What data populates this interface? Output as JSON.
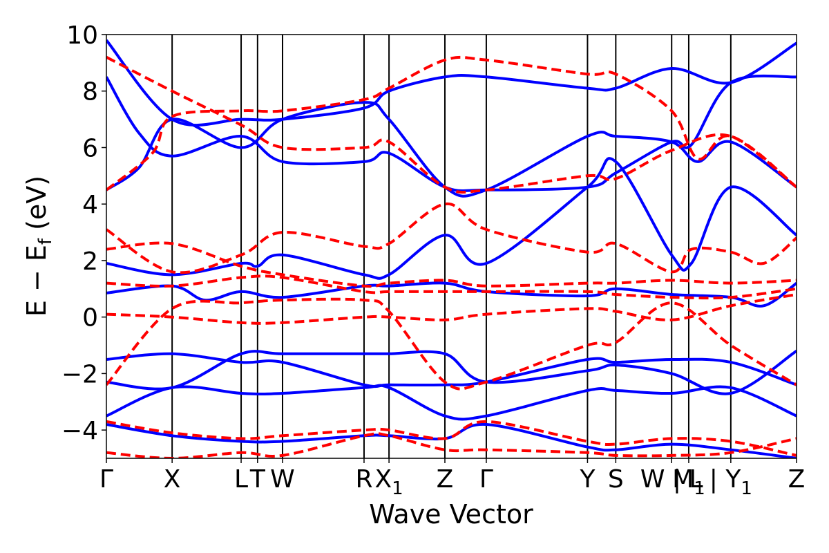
{
  "chart_data": {
    "type": "line",
    "title": "",
    "xlabel": "Wave Vector",
    "ylabel": "E − E",
    "ylabel_sub": "f",
    "ylabel_unit": " (eV)",
    "ylim": [
      -5,
      10
    ],
    "yticks": [
      {
        "value": 10,
        "label": "10"
      },
      {
        "value": 8,
        "label": "8"
      },
      {
        "value": 6,
        "label": "6"
      },
      {
        "value": 4,
        "label": "4"
      },
      {
        "value": 2,
        "label": "2"
      },
      {
        "value": 0,
        "label": "0"
      },
      {
        "value": -2,
        "label": "−2"
      },
      {
        "value": -4,
        "label": "−4"
      }
    ],
    "xlim": [
      0,
      10.5
    ],
    "kpoints": [
      {
        "label": "Γ",
        "x": 0
      },
      {
        "label": "X",
        "x": 1
      },
      {
        "label": "L",
        "x": 2.05
      },
      {
        "label": "T",
        "x": 2.3
      },
      {
        "label": "W",
        "x": 2.68
      },
      {
        "label": "R",
        "x": 3.92
      },
      {
        "label": "X",
        "sub": "1",
        "x": 4.3
      },
      {
        "label": "Z",
        "x": 5.15
      },
      {
        "label": "Γ",
        "x": 5.78
      },
      {
        "label": "Y",
        "x": 7.32
      },
      {
        "label": "S",
        "x": 7.75
      },
      {
        "label": "W | L",
        "x": 8.6
      },
      {
        "label": "M",
        "sub": "1",
        "x": 8.86
      },
      {
        "label": "| Y",
        "sub": "1",
        "x": 9.5
      },
      {
        "label": "Z",
        "x": 10.5
      }
    ],
    "grid": false,
    "legend": "none",
    "series": [
      {
        "style": "solid",
        "color": "#0000ff",
        "points": [
          [
            0,
            8.5
          ],
          [
            0.5,
            6.5
          ],
          [
            1,
            5.7
          ],
          [
            2.05,
            6.4
          ],
          [
            2.68,
            5.5
          ],
          [
            3.92,
            5.5
          ],
          [
            4.3,
            5.8
          ],
          [
            5.15,
            4.6
          ],
          [
            5.78,
            4.5
          ],
          [
            7.32,
            4.6
          ],
          [
            7.75,
            5.1
          ],
          [
            8.6,
            6.2
          ],
          [
            8.9,
            6.1
          ],
          [
            9.5,
            8.3
          ],
          [
            10.5,
            8.5
          ]
        ]
      },
      {
        "style": "solid",
        "color": "#0000ff",
        "points": [
          [
            0,
            4.5
          ],
          [
            0.5,
            5.3
          ],
          [
            1,
            7.0
          ],
          [
            2.05,
            6.0
          ],
          [
            2.68,
            7.0
          ],
          [
            3.92,
            7.6
          ],
          [
            4.3,
            7.0
          ],
          [
            5.15,
            4.6
          ],
          [
            5.78,
            4.5
          ],
          [
            7.32,
            6.4
          ],
          [
            7.75,
            6.4
          ],
          [
            8.6,
            6.2
          ],
          [
            9,
            5.5
          ],
          [
            9.5,
            6.2
          ],
          [
            10.5,
            4.6
          ]
        ]
      },
      {
        "style": "solid",
        "color": "#0000ff",
        "points": [
          [
            0,
            9.8
          ],
          [
            1,
            7.0
          ],
          [
            2.05,
            7.0
          ],
          [
            2.68,
            7.0
          ],
          [
            3.92,
            7.4
          ],
          [
            4.3,
            8.0
          ],
          [
            5.15,
            8.5
          ],
          [
            5.78,
            8.5
          ],
          [
            7.32,
            8.1
          ],
          [
            7.75,
            8.1
          ],
          [
            8.6,
            8.8
          ],
          [
            9.5,
            8.3
          ],
          [
            10.5,
            9.7
          ]
        ]
      },
      {
        "style": "solid",
        "color": "#0000ff",
        "points": [
          [
            0,
            1.9
          ],
          [
            1,
            1.5
          ],
          [
            2.05,
            1.9
          ],
          [
            2.3,
            1.8
          ],
          [
            2.68,
            2.2
          ],
          [
            3.92,
            1.5
          ],
          [
            4.3,
            1.5
          ],
          [
            5.15,
            2.9
          ],
          [
            5.78,
            1.9
          ],
          [
            7.32,
            4.6
          ],
          [
            7.75,
            5.5
          ],
          [
            8.6,
            2.2
          ],
          [
            8.9,
            1.9
          ],
          [
            9.5,
            4.6
          ],
          [
            10.5,
            2.9
          ]
        ]
      },
      {
        "style": "solid",
        "color": "#0000ff",
        "points": [
          [
            0,
            0.85
          ],
          [
            1,
            1.1
          ],
          [
            1.5,
            0.6
          ],
          [
            2.05,
            0.9
          ],
          [
            2.68,
            0.7
          ],
          [
            3.92,
            1.1
          ],
          [
            4.3,
            1.1
          ],
          [
            5.15,
            1.2
          ],
          [
            5.78,
            0.9
          ],
          [
            7.32,
            0.75
          ],
          [
            7.75,
            1.0
          ],
          [
            8.6,
            0.8
          ],
          [
            9.5,
            0.7
          ],
          [
            10,
            0.4
          ],
          [
            10.5,
            1.2
          ]
        ]
      },
      {
        "style": "solid",
        "color": "#0000ff",
        "points": [
          [
            0,
            -1.5
          ],
          [
            1,
            -1.3
          ],
          [
            2.05,
            -1.6
          ],
          [
            2.68,
            -1.6
          ],
          [
            3.92,
            -2.4
          ],
          [
            4.3,
            -2.4
          ],
          [
            5.15,
            -2.4
          ],
          [
            5.78,
            -2.3
          ],
          [
            7.32,
            -1.5
          ],
          [
            7.75,
            -1.6
          ],
          [
            8.6,
            -1.5
          ],
          [
            9.5,
            -1.6
          ],
          [
            10.5,
            -2.4
          ]
        ]
      },
      {
        "style": "solid",
        "color": "#0000ff",
        "points": [
          [
            0,
            -2.3
          ],
          [
            1,
            -2.5
          ],
          [
            2.05,
            -1.3
          ],
          [
            2.68,
            -1.3
          ],
          [
            3.92,
            -1.3
          ],
          [
            4.3,
            -1.3
          ],
          [
            5.15,
            -1.3
          ],
          [
            5.78,
            -2.3
          ],
          [
            7.32,
            -1.9
          ],
          [
            7.75,
            -1.7
          ],
          [
            8.6,
            -2.0
          ],
          [
            9.5,
            -2.7
          ],
          [
            10.5,
            -1.2
          ]
        ]
      },
      {
        "style": "solid",
        "color": "#0000ff",
        "points": [
          [
            0,
            -3.5
          ],
          [
            1,
            -2.5
          ],
          [
            2.05,
            -2.7
          ],
          [
            2.68,
            -2.7
          ],
          [
            3.92,
            -2.5
          ],
          [
            4.3,
            -2.5
          ],
          [
            5.15,
            -3.5
          ],
          [
            5.78,
            -3.5
          ],
          [
            7.32,
            -2.6
          ],
          [
            7.75,
            -2.6
          ],
          [
            8.6,
            -2.7
          ],
          [
            9.5,
            -2.5
          ],
          [
            10.5,
            -3.5
          ]
        ]
      },
      {
        "style": "solid",
        "color": "#0000ff",
        "points": [
          [
            0,
            -3.8
          ],
          [
            1,
            -4.2
          ],
          [
            2.05,
            -4.4
          ],
          [
            2.68,
            -4.4
          ],
          [
            3.92,
            -4.2
          ],
          [
            4.3,
            -4.2
          ],
          [
            5.15,
            -4.3
          ],
          [
            5.78,
            -3.8
          ],
          [
            7.32,
            -4.6
          ],
          [
            7.75,
            -4.7
          ],
          [
            8.6,
            -4.5
          ],
          [
            9.5,
            -4.7
          ],
          [
            10.5,
            -5.0
          ]
        ]
      },
      {
        "style": "dashed",
        "color": "#ff0000",
        "points": [
          [
            0,
            9.2
          ],
          [
            1,
            8.0
          ],
          [
            2.05,
            6.8
          ],
          [
            2.68,
            6.0
          ],
          [
            3.92,
            6.0
          ],
          [
            4.3,
            6.2
          ],
          [
            5.15,
            4.6
          ],
          [
            5.78,
            4.5
          ],
          [
            7.32,
            5.0
          ],
          [
            7.75,
            4.9
          ],
          [
            8.6,
            5.9
          ],
          [
            9.5,
            6.4
          ],
          [
            10.5,
            4.6
          ]
        ]
      },
      {
        "style": "dashed",
        "color": "#ff0000",
        "points": [
          [
            0,
            4.5
          ],
          [
            0.7,
            5.8
          ],
          [
            1,
            7.1
          ],
          [
            2.05,
            7.3
          ],
          [
            2.68,
            7.3
          ],
          [
            3.92,
            7.7
          ],
          [
            4.3,
            8.1
          ],
          [
            5.15,
            9.1
          ],
          [
            5.78,
            9.1
          ],
          [
            7.32,
            8.6
          ],
          [
            7.75,
            8.6
          ],
          [
            8.6,
            7.3
          ],
          [
            9,
            5.6
          ],
          [
            9.5,
            6.4
          ],
          [
            10.5,
            4.6
          ]
        ]
      },
      {
        "style": "dashed",
        "color": "#ff0000",
        "points": [
          [
            0,
            3.1
          ],
          [
            1,
            1.6
          ],
          [
            2.05,
            2.2
          ],
          [
            2.68,
            3.0
          ],
          [
            3.92,
            2.5
          ],
          [
            4.3,
            2.6
          ],
          [
            5.15,
            4.0
          ],
          [
            5.78,
            3.1
          ],
          [
            7.32,
            2.3
          ],
          [
            7.75,
            2.6
          ],
          [
            8.6,
            1.6
          ],
          [
            8.9,
            2.4
          ],
          [
            9.5,
            2.3
          ],
          [
            10,
            1.9
          ],
          [
            10.5,
            2.8
          ]
        ]
      },
      {
        "style": "dashed",
        "color": "#ff0000",
        "points": [
          [
            0,
            2.4
          ],
          [
            1,
            2.6
          ],
          [
            2.05,
            1.8
          ],
          [
            2.68,
            1.5
          ],
          [
            3.92,
            1.1
          ],
          [
            4.3,
            1.2
          ],
          [
            5.15,
            1.3
          ],
          [
            5.78,
            1.1
          ],
          [
            7.32,
            1.2
          ],
          [
            7.75,
            1.2
          ],
          [
            8.6,
            1.3
          ],
          [
            9.5,
            1.2
          ],
          [
            10.5,
            1.3
          ]
        ]
      },
      {
        "style": "dashed",
        "color": "#ff0000",
        "points": [
          [
            0,
            1.2
          ],
          [
            1,
            1.1
          ],
          [
            2.05,
            1.4
          ],
          [
            2.68,
            1.4
          ],
          [
            3.92,
            0.9
          ],
          [
            4.3,
            0.9
          ],
          [
            5.15,
            0.9
          ],
          [
            5.78,
            0.9
          ],
          [
            7.32,
            0.9
          ],
          [
            7.75,
            0.8
          ],
          [
            8.6,
            0.7
          ],
          [
            9.5,
            0.7
          ],
          [
            10.5,
            1.0
          ]
        ]
      },
      {
        "style": "dashed",
        "color": "#ff0000",
        "points": [
          [
            0,
            0.1
          ],
          [
            1,
            0.0
          ],
          [
            2.05,
            -0.2
          ],
          [
            2.68,
            -0.2
          ],
          [
            3.92,
            0.0
          ],
          [
            4.3,
            0.0
          ],
          [
            5.15,
            -0.1
          ],
          [
            5.78,
            0.1
          ],
          [
            7.32,
            0.3
          ],
          [
            7.75,
            0.2
          ],
          [
            8.6,
            -0.1
          ],
          [
            9.5,
            0.4
          ],
          [
            10.5,
            0.8
          ]
        ]
      },
      {
        "style": "dashed",
        "color": "#ff0000",
        "points": [
          [
            0,
            -2.4
          ],
          [
            1,
            0.3
          ],
          [
            2.05,
            0.5
          ],
          [
            2.68,
            0.6
          ],
          [
            3.92,
            0.6
          ],
          [
            4.3,
            0.2
          ],
          [
            5.15,
            -2.3
          ],
          [
            5.78,
            -2.3
          ],
          [
            7.32,
            -1.0
          ],
          [
            7.75,
            -0.9
          ],
          [
            8.6,
            0.5
          ],
          [
            9.5,
            -1.0
          ],
          [
            10.5,
            -2.4
          ]
        ]
      },
      {
        "style": "dashed",
        "color": "#ff0000",
        "points": [
          [
            0,
            -3.7
          ],
          [
            1,
            -4.1
          ],
          [
            2.05,
            -4.3
          ],
          [
            2.68,
            -4.2
          ],
          [
            3.92,
            -4.0
          ],
          [
            4.3,
            -4.0
          ],
          [
            5.15,
            -4.3
          ],
          [
            5.78,
            -3.7
          ],
          [
            7.32,
            -4.4
          ],
          [
            7.75,
            -4.5
          ],
          [
            8.6,
            -4.3
          ],
          [
            9.5,
            -4.4
          ],
          [
            10.5,
            -4.9
          ]
        ]
      },
      {
        "style": "dashed",
        "color": "#ff0000",
        "points": [
          [
            0,
            -4.8
          ],
          [
            1,
            -5.0
          ],
          [
            2.05,
            -4.8
          ],
          [
            2.68,
            -4.9
          ],
          [
            3.92,
            -4.2
          ],
          [
            4.3,
            -4.2
          ],
          [
            5.15,
            -4.7
          ],
          [
            5.78,
            -4.7
          ],
          [
            7.32,
            -4.8
          ],
          [
            7.75,
            -4.9
          ],
          [
            8.6,
            -4.9
          ],
          [
            9.5,
            -4.8
          ],
          [
            10.5,
            -4.3
          ]
        ]
      }
    ]
  }
}
